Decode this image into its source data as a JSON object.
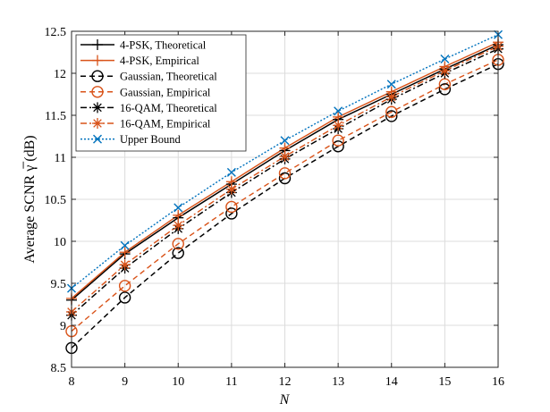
{
  "chart_data": {
    "type": "line",
    "xlabel": "N",
    "ylabel": "Average SCNR γ̅ (dB)",
    "xlim": [
      8,
      16
    ],
    "ylim": [
      8.5,
      12.5
    ],
    "xticks": [
      "8",
      "9",
      "10",
      "11",
      "12",
      "13",
      "14",
      "15",
      "16"
    ],
    "yticks": [
      "8.5",
      "9",
      "9.5",
      "10",
      "10.5",
      "11",
      "11.5",
      "12",
      "12.5"
    ],
    "grid": true,
    "legend_position": "top-left",
    "x": [
      8,
      9,
      10,
      11,
      12,
      13,
      14,
      15,
      16
    ],
    "series": [
      {
        "name": "4-PSK, Theoretical",
        "color": "#000000",
        "dash": "solid",
        "marker": "plus",
        "values": [
          9.3,
          9.85,
          10.28,
          10.68,
          11.08,
          11.45,
          11.75,
          12.05,
          12.34
        ]
      },
      {
        "name": "4-PSK, Empirical",
        "color": "#D95319",
        "dash": "solid",
        "marker": "plus",
        "values": [
          9.32,
          9.87,
          10.31,
          10.71,
          11.11,
          11.48,
          11.78,
          12.08,
          12.37
        ]
      },
      {
        "name": "Gaussian, Theoretical",
        "color": "#000000",
        "dash": "dashed",
        "marker": "circle",
        "values": [
          8.73,
          9.33,
          9.86,
          10.33,
          10.75,
          11.13,
          11.49,
          11.81,
          12.11
        ]
      },
      {
        "name": "Gaussian, Empirical",
        "color": "#D95319",
        "dash": "dashed",
        "marker": "circle",
        "values": [
          8.93,
          9.47,
          9.97,
          10.41,
          10.81,
          11.2,
          11.54,
          11.87,
          12.16
        ]
      },
      {
        "name": "16-QAM, Theoretical",
        "color": "#000000",
        "dash": "dashdot",
        "marker": "asterisk",
        "values": [
          9.12,
          9.68,
          10.15,
          10.58,
          10.98,
          11.34,
          11.69,
          12.0,
          12.29
        ]
      },
      {
        "name": "16-QAM, Empirical",
        "color": "#D95319",
        "dash": "dashdot",
        "marker": "asterisk",
        "values": [
          9.16,
          9.72,
          10.19,
          10.62,
          11.01,
          11.38,
          11.72,
          12.03,
          12.32
        ]
      },
      {
        "name": "Upper Bound",
        "color": "#0072BD",
        "dash": "dotted",
        "marker": "x",
        "values": [
          9.44,
          9.95,
          10.4,
          10.82,
          11.2,
          11.55,
          11.87,
          12.17,
          12.46
        ]
      }
    ]
  }
}
